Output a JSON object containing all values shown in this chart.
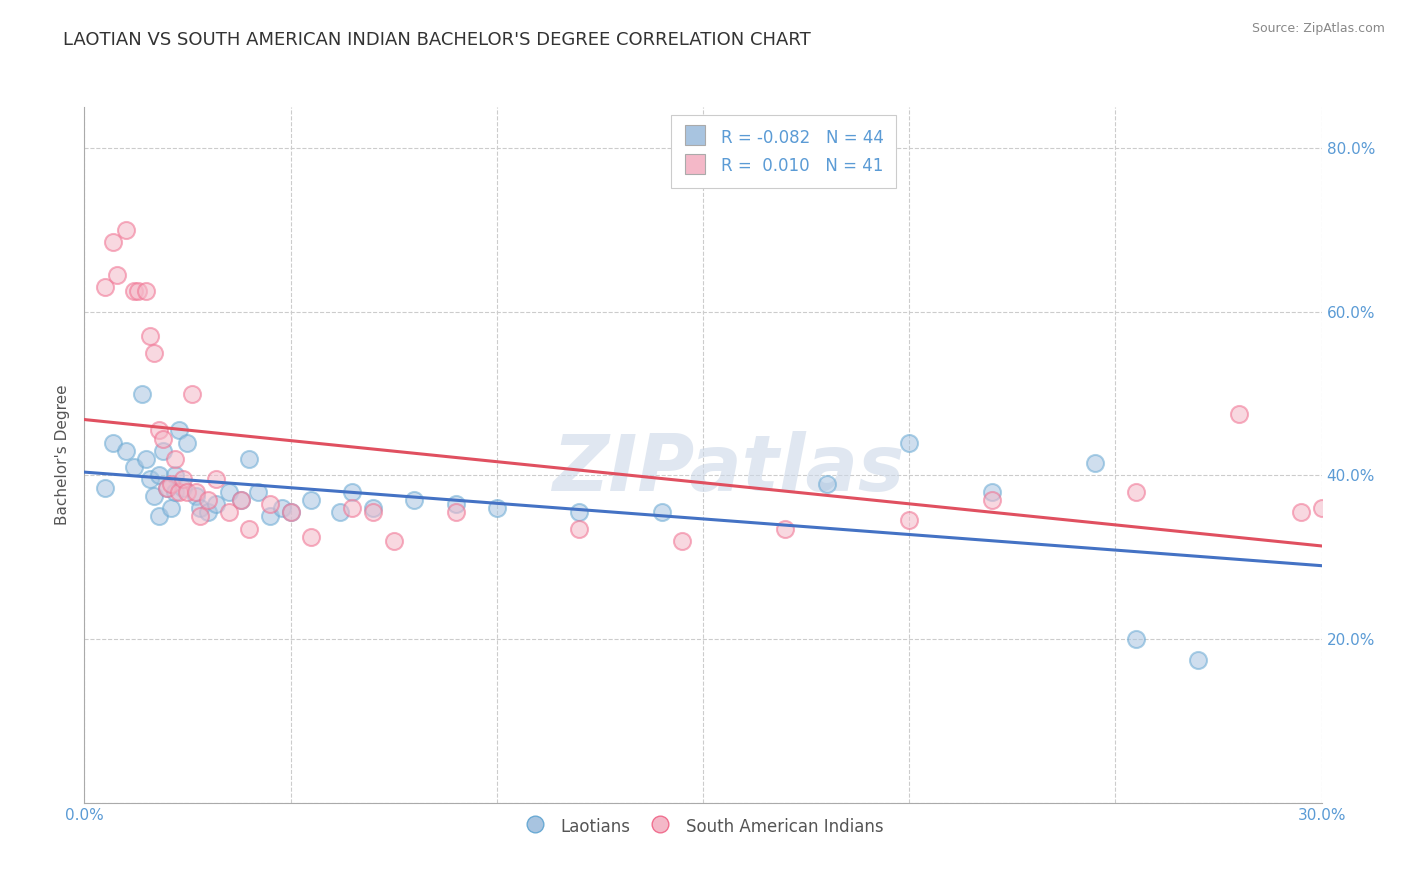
{
  "title": "LAOTIAN VS SOUTH AMERICAN INDIAN BACHELOR'S DEGREE CORRELATION CHART",
  "source_text": "Source: ZipAtlas.com",
  "ylabel": "Bachelor's Degree",
  "xlim": [
    0.0,
    0.3
  ],
  "ylim": [
    0.0,
    0.85
  ],
  "xticks": [
    0.0,
    0.05,
    0.1,
    0.15,
    0.2,
    0.25,
    0.3
  ],
  "xticklabels": [
    "0.0%",
    "",
    "",
    "",
    "",
    "",
    "30.0%"
  ],
  "yticks": [
    0.0,
    0.2,
    0.4,
    0.6,
    0.8
  ],
  "yticklabels": [
    "",
    "20.0%",
    "40.0%",
    "60.0%",
    "80.0%"
  ],
  "grid_color": "#cccccc",
  "background_color": "#ffffff",
  "legend_R1": "-0.082",
  "legend_N1": "44",
  "legend_R2": "0.010",
  "legend_N2": "41",
  "blue_color": "#a8c4e0",
  "pink_color": "#f4b8c8",
  "blue_edge_color": "#6aaad4",
  "pink_edge_color": "#f07090",
  "blue_line_color": "#4472c4",
  "pink_line_color": "#e05060",
  "title_fontsize": 13,
  "axis_label_fontsize": 11,
  "tick_fontsize": 11,
  "legend_fontsize": 12,
  "dot_size": 150,
  "dot_alpha": 0.55,
  "laotian_x": [
    0.005,
    0.007,
    0.01,
    0.012,
    0.014,
    0.015,
    0.016,
    0.017,
    0.018,
    0.018,
    0.019,
    0.02,
    0.021,
    0.022,
    0.022,
    0.023,
    0.024,
    0.025,
    0.027,
    0.028,
    0.03,
    0.032,
    0.035,
    0.038,
    0.04,
    0.042,
    0.045,
    0.048,
    0.05,
    0.055,
    0.062,
    0.065,
    0.07,
    0.08,
    0.09,
    0.1,
    0.12,
    0.14,
    0.18,
    0.2,
    0.22,
    0.245,
    0.255,
    0.27
  ],
  "laotian_y": [
    0.385,
    0.44,
    0.43,
    0.41,
    0.5,
    0.42,
    0.395,
    0.375,
    0.4,
    0.35,
    0.43,
    0.385,
    0.36,
    0.38,
    0.4,
    0.455,
    0.385,
    0.44,
    0.375,
    0.36,
    0.355,
    0.365,
    0.38,
    0.37,
    0.42,
    0.38,
    0.35,
    0.36,
    0.355,
    0.37,
    0.355,
    0.38,
    0.36,
    0.37,
    0.365,
    0.36,
    0.355,
    0.355,
    0.39,
    0.44,
    0.38,
    0.415,
    0.2,
    0.175
  ],
  "sai_x": [
    0.005,
    0.007,
    0.008,
    0.01,
    0.012,
    0.013,
    0.015,
    0.016,
    0.017,
    0.018,
    0.019,
    0.02,
    0.021,
    0.022,
    0.023,
    0.024,
    0.025,
    0.026,
    0.027,
    0.028,
    0.03,
    0.032,
    0.035,
    0.038,
    0.04,
    0.045,
    0.05,
    0.055,
    0.065,
    0.07,
    0.075,
    0.09,
    0.12,
    0.145,
    0.17,
    0.2,
    0.22,
    0.255,
    0.28,
    0.295,
    0.3
  ],
  "sai_y": [
    0.63,
    0.685,
    0.645,
    0.7,
    0.625,
    0.625,
    0.625,
    0.57,
    0.55,
    0.455,
    0.445,
    0.385,
    0.39,
    0.42,
    0.38,
    0.395,
    0.38,
    0.5,
    0.38,
    0.35,
    0.37,
    0.395,
    0.355,
    0.37,
    0.335,
    0.365,
    0.355,
    0.325,
    0.36,
    0.355,
    0.32,
    0.355,
    0.335,
    0.32,
    0.335,
    0.345,
    0.37,
    0.38,
    0.475,
    0.355,
    0.36
  ]
}
